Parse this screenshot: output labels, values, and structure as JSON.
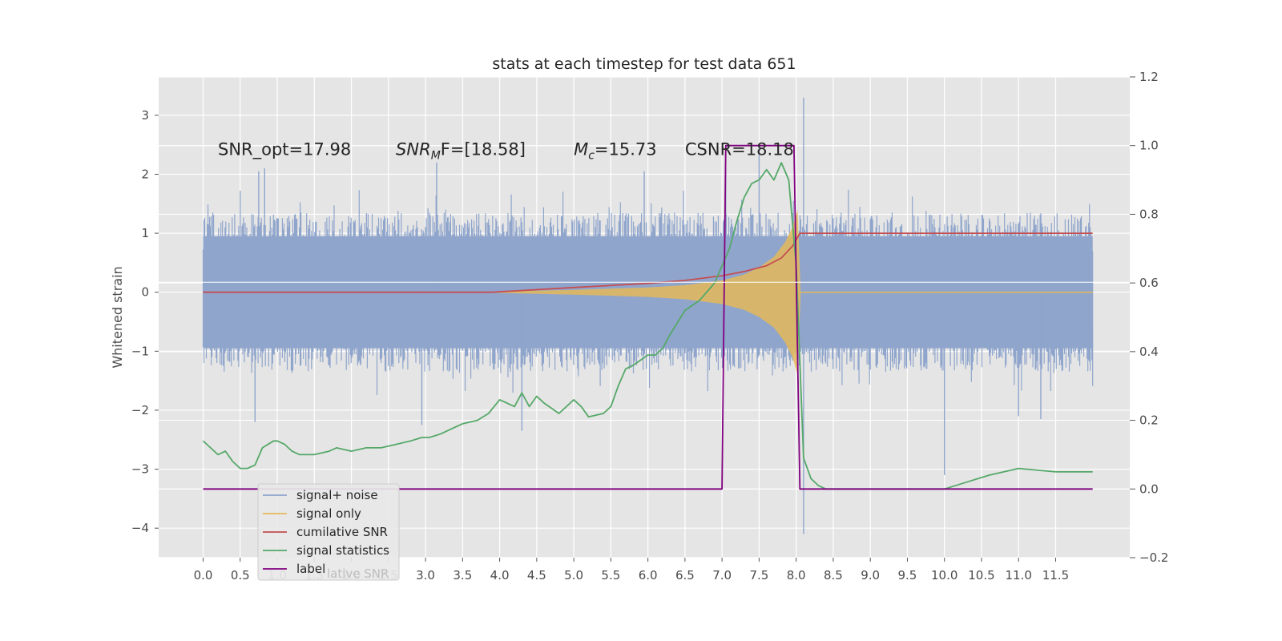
{
  "chart_data": {
    "type": "line",
    "title": "stats at each timestep for test data 651",
    "ylabel": "Whitened strain",
    "xlabel": "",
    "xlim": [
      -0.6,
      12.5
    ],
    "ylim": [
      -4.5,
      3.65
    ],
    "y2lim": [
      -0.2,
      1.2
    ],
    "grid": true,
    "legend_position": "lower-left",
    "x_ticks": [
      "0.0",
      "0.5",
      "1.0",
      "1.5",
      "2.0",
      "2.5",
      "3.0",
      "3.5",
      "4.0",
      "4.5",
      "5.0",
      "5.5",
      "6.0",
      "6.5",
      "7.0",
      "7.5",
      "8.0",
      "8.5",
      "9.0",
      "9.5",
      "10.0",
      "10.5",
      "11.0",
      "11.5"
    ],
    "y_ticks": [
      "3",
      "2",
      "1",
      "0",
      "−1",
      "−2",
      "−3",
      "−4"
    ],
    "y2_ticks": [
      "1.2",
      "1.0",
      "0.8",
      "0.6",
      "0.4",
      "0.2",
      "0.0",
      "−0.2"
    ],
    "annotations": [
      {
        "text": "SNR_opt=17.98",
        "x": 0.2,
        "y": 2.45
      },
      {
        "text_base": "SNR",
        "text_sub": "M",
        "text_rest": "F=[18.58]",
        "x": 2.6,
        "y": 2.45
      },
      {
        "text_base": "M",
        "text_sub": "c",
        "text_rest": "=15.73",
        "x": 5.0,
        "y": 2.45
      },
      {
        "text": "CSNR=18.18",
        "x": 6.5,
        "y": 2.45
      }
    ],
    "series": [
      {
        "name": "signal+ noise",
        "color": "#8fa5cc",
        "axis": "left",
        "kind": "noise",
        "x_range": [
          0,
          12
        ],
        "envelope_hi": 1.35,
        "envelope_lo": -1.35,
        "spikes": [
          {
            "x": 0.7,
            "y": -2.2
          },
          {
            "x": 0.75,
            "y": 2.05
          },
          {
            "x": 0.83,
            "y": 2.1
          },
          {
            "x": 2.95,
            "y": -2.25
          },
          {
            "x": 3.15,
            "y": 2.2
          },
          {
            "x": 4.3,
            "y": -2.35
          },
          {
            "x": 5.95,
            "y": 2.05
          },
          {
            "x": 7.5,
            "y": 2.45
          },
          {
            "x": 7.05,
            "y": 2.1
          },
          {
            "x": 8.1,
            "y": 3.3
          },
          {
            "x": 8.1,
            "y": -4.1
          },
          {
            "x": 10.0,
            "y": -3.1
          },
          {
            "x": 11.0,
            "y": -2.1
          },
          {
            "x": 11.3,
            "y": -2.15
          }
        ]
      },
      {
        "name": "signal only",
        "color": "#e4b95a",
        "axis": "left",
        "kind": "chirp",
        "x": [
          3.9,
          5.0,
          6.0,
          6.5,
          7.0,
          7.3,
          7.5,
          7.7,
          7.85,
          7.95,
          8.02,
          8.06
        ],
        "amplitude": [
          0.01,
          0.04,
          0.08,
          0.12,
          0.2,
          0.3,
          0.42,
          0.6,
          0.85,
          1.1,
          1.4,
          0.02
        ]
      },
      {
        "name": "cumilative SNR",
        "color": "#c44e52",
        "axis": "left",
        "x": [
          0.0,
          3.9,
          5.0,
          6.0,
          6.5,
          7.0,
          7.3,
          7.6,
          7.8,
          7.95,
          8.05,
          12.0
        ],
        "y": [
          0.0,
          0.0,
          0.08,
          0.15,
          0.2,
          0.28,
          0.35,
          0.45,
          0.58,
          0.78,
          1.0,
          1.0
        ]
      },
      {
        "name": "signal statistics",
        "color": "#55a868",
        "axis": "right",
        "x": [
          0.0,
          0.1,
          0.2,
          0.3,
          0.4,
          0.5,
          0.6,
          0.7,
          0.8,
          0.95,
          1.0,
          1.1,
          1.2,
          1.3,
          1.5,
          1.7,
          1.8,
          2.0,
          2.2,
          2.4,
          2.6,
          2.8,
          2.95,
          3.05,
          3.2,
          3.4,
          3.5,
          3.7,
          3.85,
          4.0,
          4.1,
          4.2,
          4.3,
          4.4,
          4.5,
          4.6,
          4.8,
          5.0,
          5.1,
          5.2,
          5.4,
          5.5,
          5.6,
          5.7,
          5.8,
          6.0,
          6.1,
          6.2,
          6.3,
          6.5,
          6.7,
          6.9,
          7.1,
          7.2,
          7.3,
          7.4,
          7.5,
          7.6,
          7.7,
          7.8,
          7.9,
          8.0,
          8.1,
          8.2,
          8.3,
          8.4,
          8.6,
          9.0,
          9.5,
          10.0,
          10.3,
          10.6,
          11.0,
          11.5,
          12.0
        ],
        "y": [
          0.14,
          0.12,
          0.1,
          0.11,
          0.08,
          0.06,
          0.06,
          0.07,
          0.12,
          0.14,
          0.14,
          0.13,
          0.11,
          0.1,
          0.1,
          0.11,
          0.12,
          0.11,
          0.12,
          0.12,
          0.13,
          0.14,
          0.15,
          0.15,
          0.16,
          0.18,
          0.19,
          0.2,
          0.22,
          0.26,
          0.25,
          0.24,
          0.28,
          0.24,
          0.27,
          0.25,
          0.22,
          0.26,
          0.24,
          0.21,
          0.22,
          0.24,
          0.3,
          0.35,
          0.36,
          0.39,
          0.39,
          0.41,
          0.45,
          0.52,
          0.55,
          0.6,
          0.7,
          0.78,
          0.85,
          0.89,
          0.9,
          0.93,
          0.9,
          0.95,
          0.9,
          0.65,
          0.09,
          0.03,
          0.01,
          0.0,
          0.0,
          0.0,
          0.0,
          0.0,
          0.02,
          0.04,
          0.06,
          0.05,
          0.05
        ]
      },
      {
        "name": "label",
        "color": "#800080",
        "axis": "right",
        "x": [
          0.0,
          7.0,
          7.05,
          7.97,
          8.05,
          12.0
        ],
        "y": [
          0,
          0,
          1,
          1,
          0,
          0
        ]
      }
    ],
    "legend": {
      "entries": [
        "signal+ noise",
        "signal only",
        "cumilative SNR",
        "signal statistics",
        "label"
      ],
      "ghost_text": "lative SNR"
    }
  }
}
